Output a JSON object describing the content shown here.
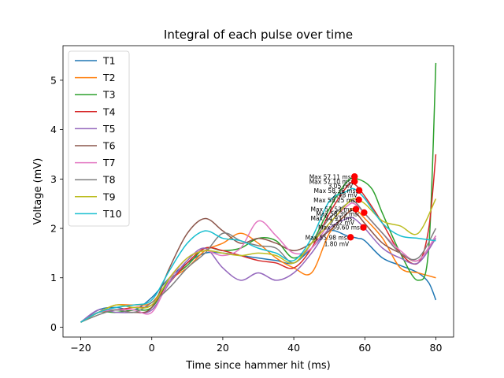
{
  "chart_data": {
    "type": "line",
    "title": "Integral of each pulse over time",
    "xlabel": "Time since hammer hit (ms)",
    "ylabel": "Voltage (mV)",
    "xlim": [
      -25,
      85
    ],
    "ylim": [
      -0.2,
      5.7
    ],
    "xticks": [
      -20,
      0,
      20,
      40,
      60,
      80
    ],
    "yticks": [
      0,
      1,
      2,
      3,
      4,
      5
    ],
    "legend": "upper-left",
    "grid": false,
    "series": [
      {
        "name": "T1",
        "color": "#1f77b4",
        "points": [
          [
            -20,
            0.1
          ],
          [
            -15,
            0.35
          ],
          [
            -10,
            0.4
          ],
          [
            -5,
            0.35
          ],
          [
            0,
            0.6
          ],
          [
            5,
            1.0
          ],
          [
            10,
            1.3
          ],
          [
            15,
            1.5
          ],
          [
            20,
            1.5
          ],
          [
            25,
            1.45
          ],
          [
            30,
            1.4
          ],
          [
            35,
            1.35
          ],
          [
            40,
            1.3
          ],
          [
            45,
            1.6
          ],
          [
            50,
            1.95
          ],
          [
            55,
            1.85
          ],
          [
            58,
            1.8
          ],
          [
            60,
            1.75
          ],
          [
            65,
            1.4
          ],
          [
            70,
            1.25
          ],
          [
            75,
            1.1
          ],
          [
            78,
            0.9
          ],
          [
            80,
            0.55
          ]
        ]
      },
      {
        "name": "T2",
        "color": "#ff7f0e",
        "points": [
          [
            -20,
            0.1
          ],
          [
            -15,
            0.3
          ],
          [
            -10,
            0.45
          ],
          [
            -5,
            0.45
          ],
          [
            0,
            0.5
          ],
          [
            5,
            0.95
          ],
          [
            10,
            1.2
          ],
          [
            15,
            1.55
          ],
          [
            20,
            1.7
          ],
          [
            25,
            1.9
          ],
          [
            30,
            1.7
          ],
          [
            35,
            1.4
          ],
          [
            40,
            1.2
          ],
          [
            45,
            1.1
          ],
          [
            50,
            1.9
          ],
          [
            55,
            2.3
          ],
          [
            57,
            2.4
          ],
          [
            60,
            2.2
          ],
          [
            65,
            1.8
          ],
          [
            70,
            1.2
          ],
          [
            75,
            1.1
          ],
          [
            80,
            1.0
          ]
        ]
      },
      {
        "name": "T3",
        "color": "#2ca02c",
        "points": [
          [
            -20,
            0.1
          ],
          [
            -15,
            0.3
          ],
          [
            -10,
            0.3
          ],
          [
            -5,
            0.35
          ],
          [
            0,
            0.4
          ],
          [
            5,
            0.95
          ],
          [
            10,
            1.25
          ],
          [
            15,
            1.6
          ],
          [
            20,
            1.55
          ],
          [
            25,
            1.6
          ],
          [
            30,
            1.8
          ],
          [
            35,
            1.75
          ],
          [
            40,
            1.4
          ],
          [
            45,
            1.7
          ],
          [
            50,
            2.4
          ],
          [
            55,
            2.95
          ],
          [
            58,
            3.0
          ],
          [
            62,
            2.8
          ],
          [
            65,
            2.3
          ],
          [
            70,
            1.5
          ],
          [
            75,
            0.95
          ],
          [
            78,
            1.6
          ],
          [
            80,
            5.35
          ]
        ]
      },
      {
        "name": "T4",
        "color": "#d62728",
        "points": [
          [
            -20,
            0.1
          ],
          [
            -15,
            0.3
          ],
          [
            -10,
            0.35
          ],
          [
            -5,
            0.4
          ],
          [
            0,
            0.45
          ],
          [
            5,
            0.9
          ],
          [
            10,
            1.3
          ],
          [
            15,
            1.6
          ],
          [
            20,
            1.55
          ],
          [
            25,
            1.45
          ],
          [
            30,
            1.35
          ],
          [
            35,
            1.3
          ],
          [
            40,
            1.2
          ],
          [
            45,
            1.6
          ],
          [
            50,
            2.3
          ],
          [
            55,
            2.85
          ],
          [
            57,
            2.9
          ],
          [
            60,
            2.65
          ],
          [
            65,
            2.1
          ],
          [
            70,
            1.5
          ],
          [
            75,
            1.3
          ],
          [
            78,
            2.0
          ],
          [
            80,
            3.5
          ]
        ]
      },
      {
        "name": "T5",
        "color": "#9467bd",
        "points": [
          [
            -20,
            0.1
          ],
          [
            -15,
            0.35
          ],
          [
            -10,
            0.3
          ],
          [
            -5,
            0.3
          ],
          [
            0,
            0.35
          ],
          [
            5,
            0.9
          ],
          [
            10,
            1.35
          ],
          [
            15,
            1.6
          ],
          [
            20,
            1.2
          ],
          [
            25,
            0.95
          ],
          [
            30,
            1.1
          ],
          [
            35,
            0.95
          ],
          [
            40,
            1.1
          ],
          [
            45,
            1.5
          ],
          [
            50,
            2.0
          ],
          [
            55,
            2.2
          ],
          [
            57,
            2.2
          ],
          [
            60,
            2.0
          ],
          [
            65,
            1.6
          ],
          [
            70,
            1.4
          ],
          [
            75,
            1.3
          ],
          [
            80,
            1.8
          ]
        ]
      },
      {
        "name": "T6",
        "color": "#8c564b",
        "points": [
          [
            -20,
            0.1
          ],
          [
            -15,
            0.3
          ],
          [
            -10,
            0.35
          ],
          [
            -5,
            0.3
          ],
          [
            0,
            0.4
          ],
          [
            5,
            1.2
          ],
          [
            10,
            1.9
          ],
          [
            15,
            2.2
          ],
          [
            20,
            1.95
          ],
          [
            25,
            1.7
          ],
          [
            30,
            1.8
          ],
          [
            35,
            1.7
          ],
          [
            40,
            1.55
          ],
          [
            45,
            1.7
          ],
          [
            50,
            1.95
          ],
          [
            55,
            2.3
          ],
          [
            57,
            2.35
          ],
          [
            60,
            2.1
          ],
          [
            65,
            1.7
          ],
          [
            70,
            1.5
          ],
          [
            75,
            1.35
          ],
          [
            80,
            1.85
          ]
        ]
      },
      {
        "name": "T7",
        "color": "#e377c2",
        "points": [
          [
            -20,
            0.1
          ],
          [
            -15,
            0.3
          ],
          [
            -10,
            0.35
          ],
          [
            -5,
            0.35
          ],
          [
            0,
            0.3
          ],
          [
            5,
            0.95
          ],
          [
            10,
            1.4
          ],
          [
            15,
            1.55
          ],
          [
            20,
            1.45
          ],
          [
            25,
            1.6
          ],
          [
            30,
            2.15
          ],
          [
            35,
            1.85
          ],
          [
            40,
            1.5
          ],
          [
            45,
            1.6
          ],
          [
            50,
            2.1
          ],
          [
            55,
            2.45
          ],
          [
            57,
            2.5
          ],
          [
            60,
            2.3
          ],
          [
            65,
            1.9
          ],
          [
            70,
            1.55
          ],
          [
            75,
            1.35
          ],
          [
            80,
            1.85
          ]
        ]
      },
      {
        "name": "T8",
        "color": "#7f7f7f",
        "points": [
          [
            -20,
            0.1
          ],
          [
            -15,
            0.25
          ],
          [
            -10,
            0.35
          ],
          [
            -5,
            0.3
          ],
          [
            0,
            0.5
          ],
          [
            5,
            0.8
          ],
          [
            10,
            1.2
          ],
          [
            15,
            1.5
          ],
          [
            20,
            1.9
          ],
          [
            25,
            1.75
          ],
          [
            30,
            1.65
          ],
          [
            35,
            1.6
          ],
          [
            40,
            1.3
          ],
          [
            45,
            1.7
          ],
          [
            50,
            2.2
          ],
          [
            55,
            2.5
          ],
          [
            57,
            2.55
          ],
          [
            60,
            2.3
          ],
          [
            65,
            1.9
          ],
          [
            70,
            1.5
          ],
          [
            75,
            1.4
          ],
          [
            80,
            2.0
          ]
        ]
      },
      {
        "name": "T9",
        "color": "#bcbd22",
        "points": [
          [
            -20,
            0.1
          ],
          [
            -15,
            0.3
          ],
          [
            -10,
            0.45
          ],
          [
            -5,
            0.4
          ],
          [
            0,
            0.45
          ],
          [
            5,
            1.0
          ],
          [
            10,
            1.4
          ],
          [
            15,
            1.55
          ],
          [
            20,
            1.5
          ],
          [
            25,
            1.45
          ],
          [
            30,
            1.5
          ],
          [
            35,
            1.45
          ],
          [
            40,
            1.3
          ],
          [
            45,
            1.7
          ],
          [
            50,
            2.1
          ],
          [
            55,
            2.5
          ],
          [
            57,
            2.6
          ],
          [
            60,
            2.5
          ],
          [
            65,
            2.15
          ],
          [
            70,
            2.05
          ],
          [
            75,
            1.9
          ],
          [
            80,
            2.6
          ]
        ]
      },
      {
        "name": "T10",
        "color": "#17becf",
        "points": [
          [
            -20,
            0.1
          ],
          [
            -15,
            0.3
          ],
          [
            -10,
            0.4
          ],
          [
            -5,
            0.45
          ],
          [
            0,
            0.55
          ],
          [
            5,
            1.15
          ],
          [
            10,
            1.7
          ],
          [
            15,
            1.95
          ],
          [
            20,
            1.8
          ],
          [
            25,
            1.75
          ],
          [
            30,
            1.6
          ],
          [
            35,
            1.5
          ],
          [
            40,
            1.35
          ],
          [
            45,
            1.8
          ],
          [
            50,
            2.55
          ],
          [
            55,
            2.75
          ],
          [
            57,
            2.8
          ],
          [
            60,
            2.6
          ],
          [
            65,
            2.1
          ],
          [
            70,
            1.85
          ],
          [
            75,
            1.8
          ],
          [
            80,
            1.75
          ]
        ]
      }
    ],
    "markers": [
      {
        "x": 57.1,
        "y": 3.05,
        "color": "#ff0000"
      },
      {
        "x": 57.1,
        "y": 2.95,
        "color": "#ff0000"
      },
      {
        "x": 58.4,
        "y": 2.77,
        "color": "#ff0000"
      },
      {
        "x": 58.3,
        "y": 2.58,
        "color": "#ff0000"
      },
      {
        "x": 57.5,
        "y": 2.39,
        "color": "#ff0000"
      },
      {
        "x": 59.8,
        "y": 2.32,
        "color": "#ff0000"
      },
      {
        "x": 59.6,
        "y": 2.02,
        "color": "#ff0000"
      },
      {
        "x": 55.98,
        "y": 1.82,
        "color": "#ff0000"
      }
    ],
    "annotations": [
      {
        "text": "Max 57.11 ms:",
        "x": 57.1,
        "y": 3.0
      },
      {
        "text": "Max 57.10 ms:",
        "x": 57.1,
        "y": 2.9
      },
      {
        "text": "3.05 mV",
        "x": 57.1,
        "y": 2.81
      },
      {
        "text": "Max 58.36 ms:",
        "x": 58.4,
        "y": 2.72
      },
      {
        "text": "2.48 mV",
        "x": 58.4,
        "y": 2.63
      },
      {
        "text": "Max 58.25 ms:",
        "x": 58.3,
        "y": 2.53
      },
      {
        "text": "Max 57.53 ms:",
        "x": 57.5,
        "y": 2.34
      },
      {
        "text": "Max 58.39 ms:",
        "x": 59.0,
        "y": 2.25
      },
      {
        "text": "Max 54.93 ms:",
        "x": 57.5,
        "y": 2.16
      },
      {
        "text": "2.32 mV",
        "x": 57.5,
        "y": 2.07
      },
      {
        "text": "Max 59.60 ms:",
        "x": 59.6,
        "y": 1.98
      },
      {
        "text": "Max 55.98 ms:",
        "x": 55.98,
        "y": 1.77
      },
      {
        "text": "1.80 mV",
        "x": 55.98,
        "y": 1.64
      }
    ]
  }
}
